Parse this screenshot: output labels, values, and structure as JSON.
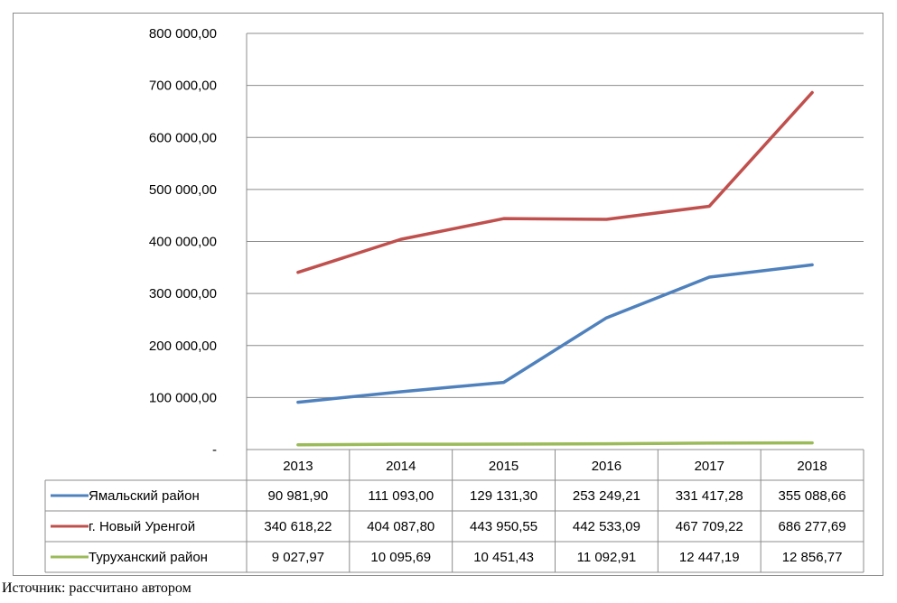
{
  "chart_data": {
    "type": "line",
    "title": "",
    "xlabel": "",
    "ylabel": "",
    "categories": [
      "2013",
      "2014",
      "2015",
      "2016",
      "2017",
      "2018"
    ],
    "ylim": [
      0,
      800000
    ],
    "y_ticks": [
      {
        "value": 0,
        "label": "-"
      },
      {
        "value": 100000,
        "label": "100 000,00"
      },
      {
        "value": 200000,
        "label": "200 000,00"
      },
      {
        "value": 300000,
        "label": "300 000,00"
      },
      {
        "value": 400000,
        "label": "400 000,00"
      },
      {
        "value": 500000,
        "label": "500 000,00"
      },
      {
        "value": 600000,
        "label": "600 000,00"
      },
      {
        "value": 700000,
        "label": "700 000,00"
      },
      {
        "value": 800000,
        "label": "800 000,00"
      }
    ],
    "grid": true,
    "legend": "data-table",
    "series": [
      {
        "name": "Ямальский район",
        "color": "#4f81bd",
        "values": [
          90981.9,
          111093.0,
          129131.3,
          253249.21,
          331417.28,
          355088.66
        ],
        "labels": [
          "90 981,90",
          "111 093,00",
          "129 131,30",
          "253 249,21",
          "331 417,28",
          "355 088,66"
        ]
      },
      {
        "name": "г. Новый Уренгой",
        "color": "#c0504d",
        "values": [
          340618.22,
          404087.8,
          443950.55,
          442533.09,
          467709.22,
          686277.69
        ],
        "labels": [
          "340 618,22",
          "404 087,80",
          "443 950,55",
          "442 533,09",
          "467 709,22",
          "686 277,69"
        ]
      },
      {
        "name": "Туруханский район",
        "color": "#9bbb59",
        "values": [
          9027.97,
          10095.69,
          10451.43,
          11092.91,
          12447.19,
          12856.77
        ],
        "labels": [
          "9 027,97",
          "10 095,69",
          "10 451,43",
          "11 092,91",
          "12 447,19",
          "12 856,77"
        ]
      }
    ]
  },
  "source_note": "Источник: рассчитано автором"
}
